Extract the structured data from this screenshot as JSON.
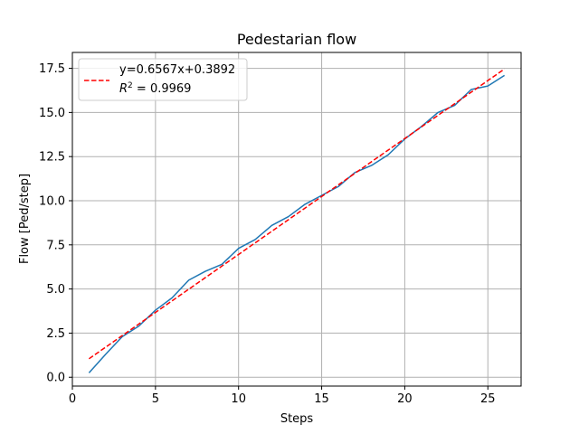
{
  "chart_data": {
    "type": "line",
    "title": "Pedestarian flow",
    "xlabel": "Steps",
    "ylabel": "Flow [Ped/step]",
    "xlim": [
      0,
      27
    ],
    "ylim": [
      -0.5,
      18.4
    ],
    "xticks": [
      0,
      5,
      10,
      15,
      20,
      25
    ],
    "yticks": [
      0.0,
      2.5,
      5.0,
      7.5,
      10.0,
      12.5,
      15.0,
      17.5
    ],
    "ytick_labels": [
      "0.0",
      "2.5",
      "5.0",
      "7.5",
      "10.0",
      "12.5",
      "15.0",
      "17.5"
    ],
    "grid": true,
    "legend_position": "top-left",
    "series": [
      {
        "color": "#1f77b4",
        "style": "solid",
        "x": [
          1,
          2,
          3,
          4,
          5,
          6,
          7,
          8,
          9,
          10,
          11,
          12,
          13,
          14,
          15,
          16,
          17,
          18,
          19,
          20,
          21,
          22,
          23,
          24,
          25,
          26
        ],
        "y": [
          0.25,
          1.3,
          2.3,
          2.9,
          3.8,
          4.5,
          5.5,
          6.0,
          6.4,
          7.3,
          7.8,
          8.6,
          9.1,
          9.8,
          10.3,
          10.8,
          11.6,
          12.0,
          12.6,
          13.5,
          14.2,
          15.0,
          15.4,
          16.3,
          16.5,
          17.1
        ]
      },
      {
        "name": "y=0.6567x+0.3892",
        "color": "#ff0000",
        "style": "dashed",
        "slope": 0.6567,
        "intercept": 0.3892,
        "x": [
          1,
          26
        ]
      }
    ],
    "legend": {
      "fit_label": "y=0.6567x+0.3892",
      "r2_prefix": "R",
      "r2_superscript": "2",
      "r2_value": " = 0.9969"
    }
  }
}
